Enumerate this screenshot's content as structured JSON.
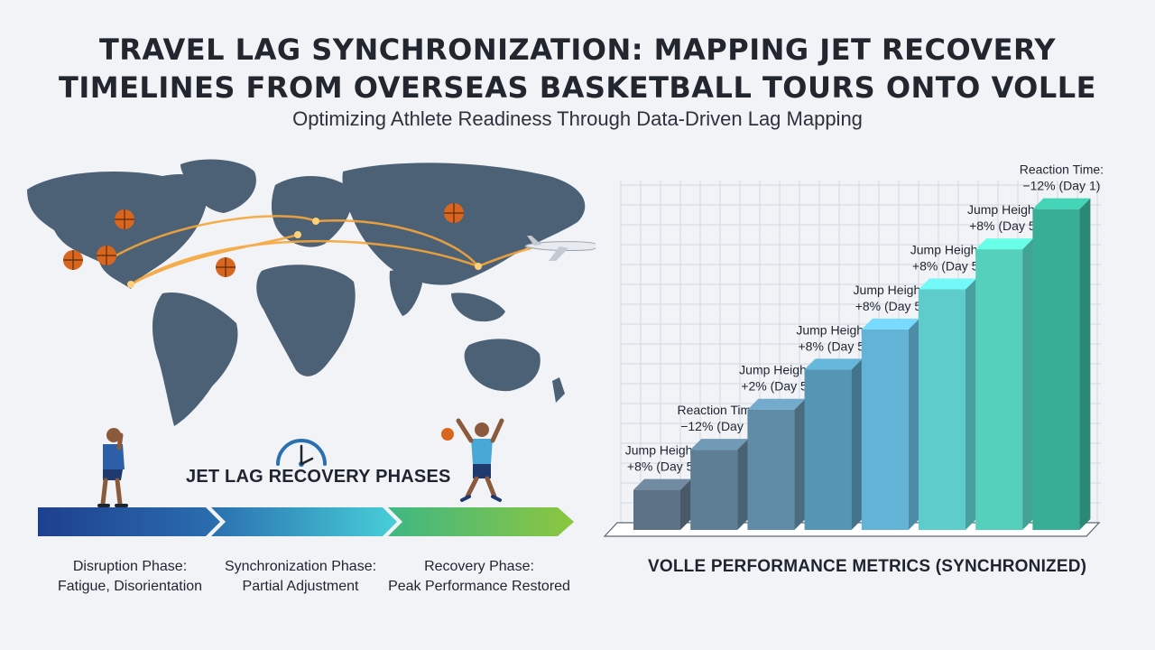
{
  "title_line1": "TRAVEL LAG SYNCHRONIZATION: MAPPING JET RECOVERY",
  "title_line2": "TIMELINES FROM OVERSEAS BASKETBALL TOURS ONTO VOLLE",
  "subtitle": "Optimizing Athlete Readiness Through Data-Driven Lag Mapping",
  "phases_heading": "JET LAG RECOVERY PHASES",
  "phases": [
    {
      "name": "Disruption Phase:",
      "desc": "Fatigue, Disorientation"
    },
    {
      "name": "Synchronization Phase:",
      "desc": "Partial Adjustment"
    },
    {
      "name": "Recovery Phase:",
      "desc": "Peak Performance Restored"
    }
  ],
  "colors": {
    "map_land": "#4d6176",
    "flight_path": "#f6a63a",
    "phase_1": "#1e3f8f",
    "phase_2": "#35b9d0",
    "phase_3": "#8cc63f"
  },
  "icons": [
    "basketball-icon",
    "airplane-icon",
    "clock-icon",
    "fatigued-athlete-icon",
    "jumping-athlete-icon"
  ],
  "chart_data": {
    "type": "bar",
    "title": "VOLLE PERFORMANCE METRICS (SYNCHRONIZED)",
    "values": [
      1,
      2,
      3,
      4,
      5,
      6,
      7,
      8
    ],
    "ylim": [
      0,
      8.6
    ],
    "grid": true,
    "style": "3d",
    "colors": [
      "#5d7285",
      "#5d7e95",
      "#5f8ba6",
      "#5496b4",
      "#62b3d6",
      "#5ecccb",
      "#55d0bd",
      "#38ae96"
    ],
    "labels": [
      [
        "Jump Height:",
        "+8% (Day 5)"
      ],
      [
        "Reaction Time:",
        "−12% (Day 2)"
      ],
      [
        "Jump Height:",
        "+2% (Day 5)"
      ],
      [
        "Jump Height:",
        "+8% (Day 5)"
      ],
      [
        "Jump Height:",
        "+8% (Day 5)"
      ],
      [
        "Jump Height:",
        "+8% (Day 5)"
      ],
      [
        "Jump Height:",
        "+8% (Day 5)"
      ],
      [
        "Reaction Time:",
        "−12% (Day 1)"
      ]
    ]
  }
}
